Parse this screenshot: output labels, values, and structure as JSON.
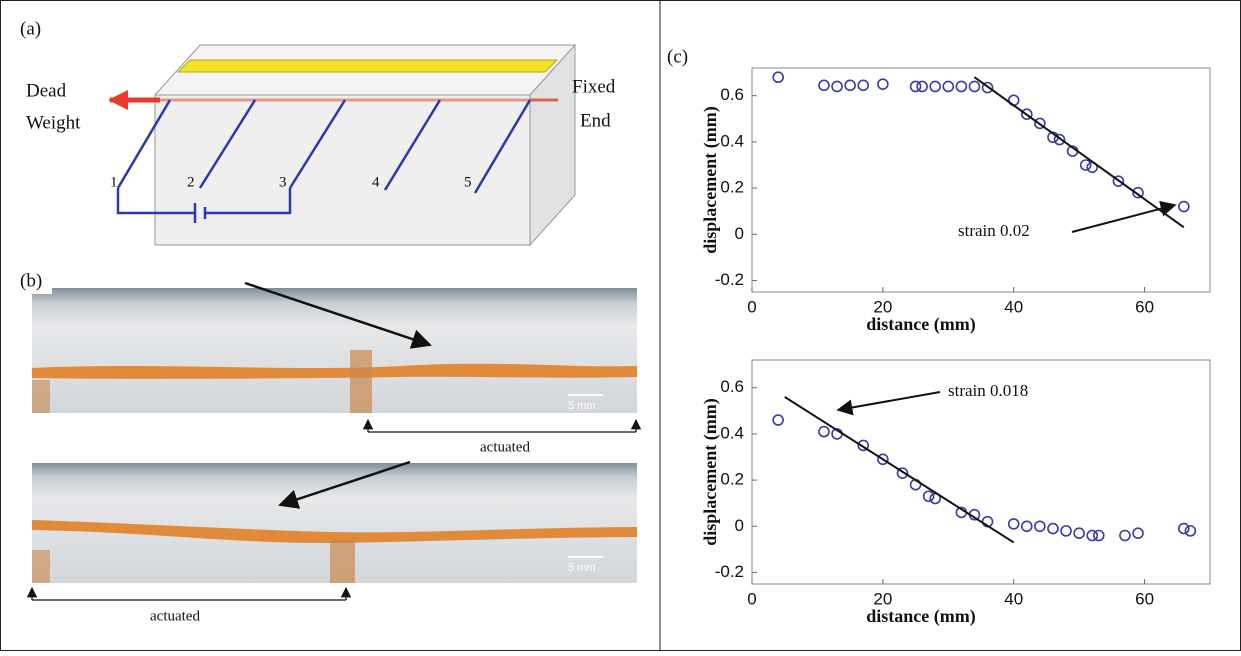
{
  "panel_a": {
    "label": "(a)",
    "left_label": [
      "Dead",
      "Weight"
    ],
    "right_label": [
      "Fixed",
      "End"
    ],
    "electrodes": [
      "1",
      "2",
      "3",
      "4",
      "5"
    ]
  },
  "panel_b": {
    "label": "(b)",
    "photos": [
      {
        "scale_bar": "5 mm",
        "caption": "actuated"
      },
      {
        "scale_bar": "5 mm",
        "caption": "actuated"
      }
    ]
  },
  "panel_c": {
    "label": "(c)"
  },
  "chart_data": [
    {
      "type": "scatter",
      "x_label": "distance (mm)",
      "y_label": "displacement (mm)",
      "color": "#3a3aa8",
      "x": [
        4,
        11,
        13,
        15,
        17,
        20,
        25,
        26,
        28,
        30,
        32,
        34,
        36,
        40,
        42,
        44,
        46,
        47,
        49,
        51,
        52,
        56,
        59,
        66
      ],
      "values": [
        0.68,
        0.645,
        0.64,
        0.645,
        0.645,
        0.65,
        0.64,
        0.64,
        0.64,
        0.64,
        0.64,
        0.64,
        0.635,
        0.58,
        0.52,
        0.48,
        0.42,
        0.41,
        0.36,
        0.3,
        0.29,
        0.23,
        0.18,
        0.12
      ],
      "xlim": [
        0,
        70
      ],
      "ylim": [
        -0.25,
        0.72
      ],
      "xticks": [
        0,
        20,
        40,
        60
      ],
      "yticks": [
        -0.2,
        0,
        0.2,
        0.4,
        0.6
      ],
      "fit": {
        "x": [
          34,
          66
        ],
        "y": [
          0.68,
          0.03
        ]
      },
      "annotation": "strain 0.02"
    },
    {
      "type": "scatter",
      "x_label": "distance (mm)",
      "y_label": "displacement (mm)",
      "color": "#3a3aa8",
      "x": [
        4,
        11,
        13,
        17,
        20,
        23,
        25,
        27,
        28,
        32,
        34,
        36,
        40,
        42,
        44,
        46,
        48,
        50,
        52,
        53,
        57,
        59,
        66,
        67
      ],
      "values": [
        0.46,
        0.41,
        0.4,
        0.35,
        0.29,
        0.23,
        0.18,
        0.13,
        0.12,
        0.06,
        0.05,
        0.02,
        0.01,
        0.0,
        0.0,
        -0.01,
        -0.02,
        -0.03,
        -0.04,
        -0.04,
        -0.04,
        -0.03,
        -0.01,
        -0.02
      ],
      "xlim": [
        0,
        70
      ],
      "ylim": [
        -0.25,
        0.72
      ],
      "xticks": [
        0,
        20,
        40,
        60
      ],
      "yticks": [
        -0.2,
        0,
        0.2,
        0.4,
        0.6
      ],
      "fit": {
        "x": [
          5,
          40
        ],
        "y": [
          0.56,
          -0.07
        ]
      },
      "annotation": "strain 0.018"
    }
  ]
}
